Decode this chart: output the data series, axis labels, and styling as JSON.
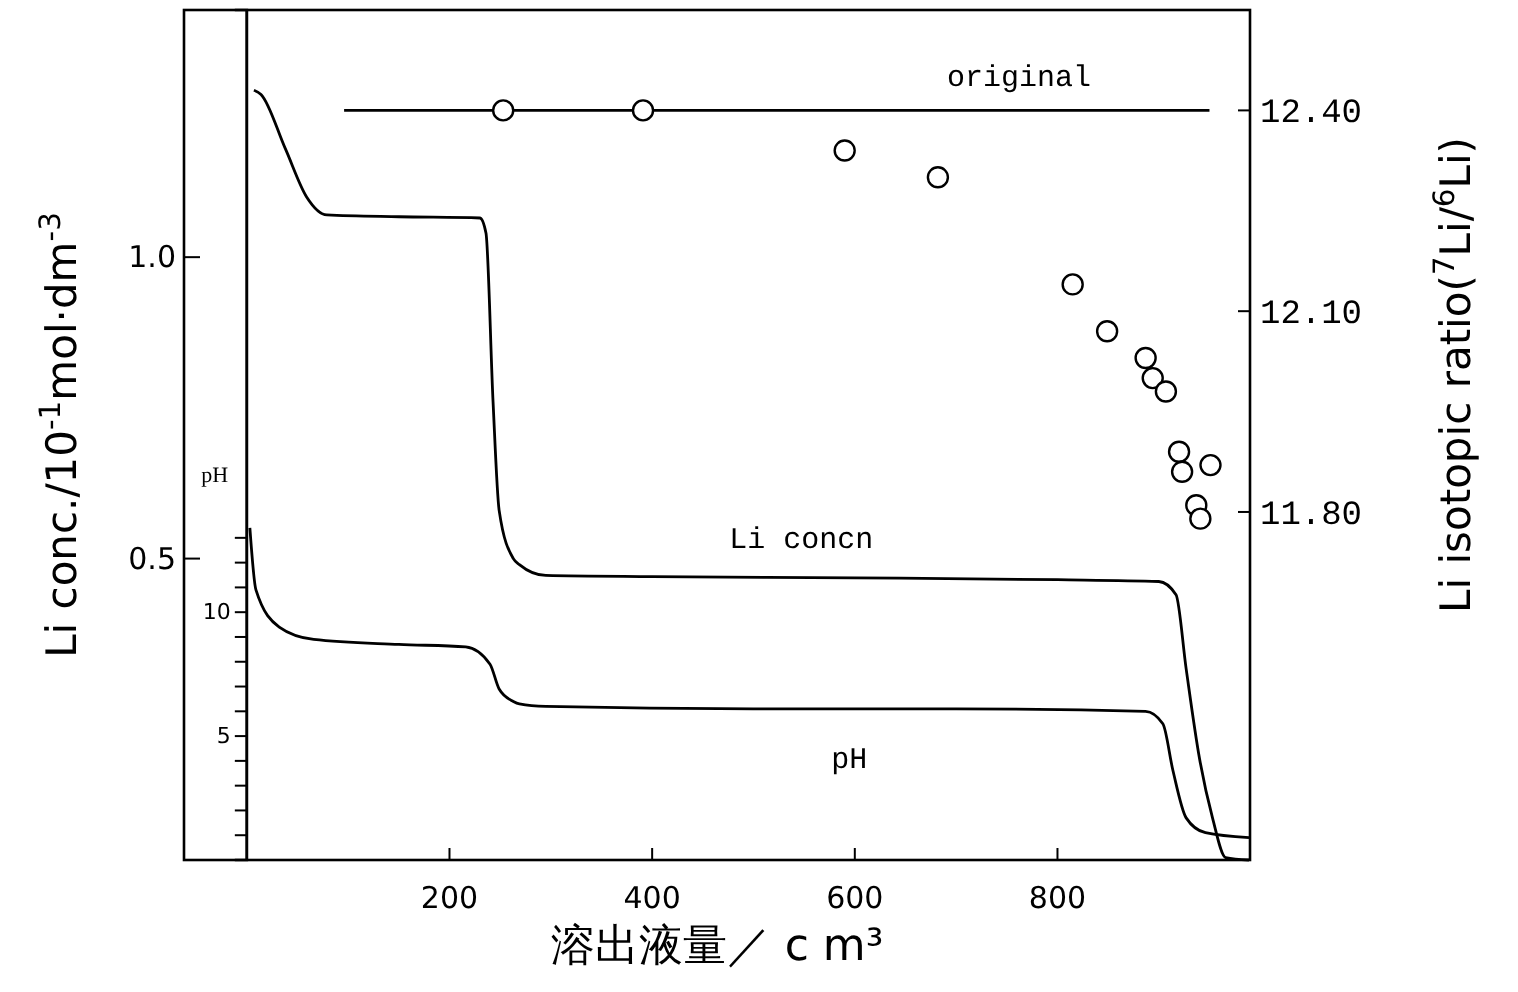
{
  "chart_data": {
    "type": "line",
    "xlabel": "溶出液量／ c m³",
    "ylabel": "Li conc./10$^{-1}$mol·dm$^{-3}$",
    "y2label": "Li isotopic ratio($^{7}$Li/$^{6}$Li)",
    "y3label": "pH",
    "xlim": [
      -62,
      990
    ],
    "xticks": [
      200,
      400,
      600,
      800
    ],
    "ylim": [
      0,
      1.41
    ],
    "yticks": [
      0.5,
      {
        "value": 1,
        "label": "1.0"
      }
    ],
    "y2lim": [
      11.28,
      12.55
    ],
    "y2ticks": [
      {
        "value": 11.8,
        "label": "11.80"
      },
      {
        "value": 12.1,
        "label": "12.10"
      },
      {
        "value": 12.4,
        "label": "12.40"
      }
    ],
    "y3lim": [
      0,
      34.3
    ],
    "y3ticks": [
      {
        "value": 1,
        "label": null
      },
      {
        "value": 2,
        "label": null
      },
      {
        "value": 3,
        "label": null
      },
      {
        "value": 4,
        "label": null
      },
      5,
      {
        "value": 6,
        "label": null
      },
      {
        "value": 7,
        "label": null
      },
      {
        "value": 8,
        "label": null
      },
      {
        "value": 9,
        "label": null
      },
      10,
      {
        "value": 11,
        "label": null
      },
      {
        "value": 12,
        "label": null
      },
      {
        "value": 13,
        "label": null
      }
    ],
    "grid": false,
    "legend": false,
    "series": [
      {
        "name": "Li concn",
        "color": "#000000",
        "x": [
          7,
          14,
          38,
          59,
          79,
          150,
          230,
          236,
          243,
          249,
          263,
          269,
          295,
          400,
          600,
          800,
          900,
          917,
          927,
          940,
          953,
          966,
          989
        ],
        "values": [
          1.277,
          1.27,
          1.18,
          1.1,
          1.07,
          1.067,
          1.065,
          1.04,
          0.76,
          0.58,
          0.5,
          0.49,
          0.472,
          0.47,
          0.468,
          0.465,
          0.462,
          0.44,
          0.317,
          0.17,
          0.07,
          0.004,
          0.0
        ]
      },
      {
        "name": "pH",
        "axis": "y3",
        "color": "#000000",
        "x": [
          3,
          9,
          32,
          66,
          150,
          216,
          240,
          249,
          263,
          269,
          295,
          500,
          700,
          887,
          904,
          914,
          927,
          946,
          989
        ],
        "values": [
          13.4,
          10.9,
          9.4,
          8.9,
          8.7,
          8.6,
          7.9,
          6.9,
          6.4,
          6.3,
          6.2,
          6.1,
          6.1,
          6.0,
          5.5,
          3.6,
          1.7,
          1.1,
          0.9
        ]
      },
      {
        "name": "original",
        "axis": "y2",
        "color": "#000000",
        "x": [
          96,
          950
        ],
        "values": [
          12.4,
          12.4
        ]
      },
      {
        "type": "scatter",
        "axis": "y2",
        "marker": "circle",
        "color": "#000000",
        "x": [
          253,
          391,
          590,
          682,
          815,
          849,
          887,
          894,
          907,
          920,
          923,
          951,
          937,
          941
        ],
        "values": [
          12.4,
          12.4,
          12.34,
          12.3,
          12.14,
          12.07,
          12.03,
          12.0,
          11.98,
          11.89,
          11.86,
          11.87,
          11.81,
          11.79
        ]
      }
    ]
  }
}
